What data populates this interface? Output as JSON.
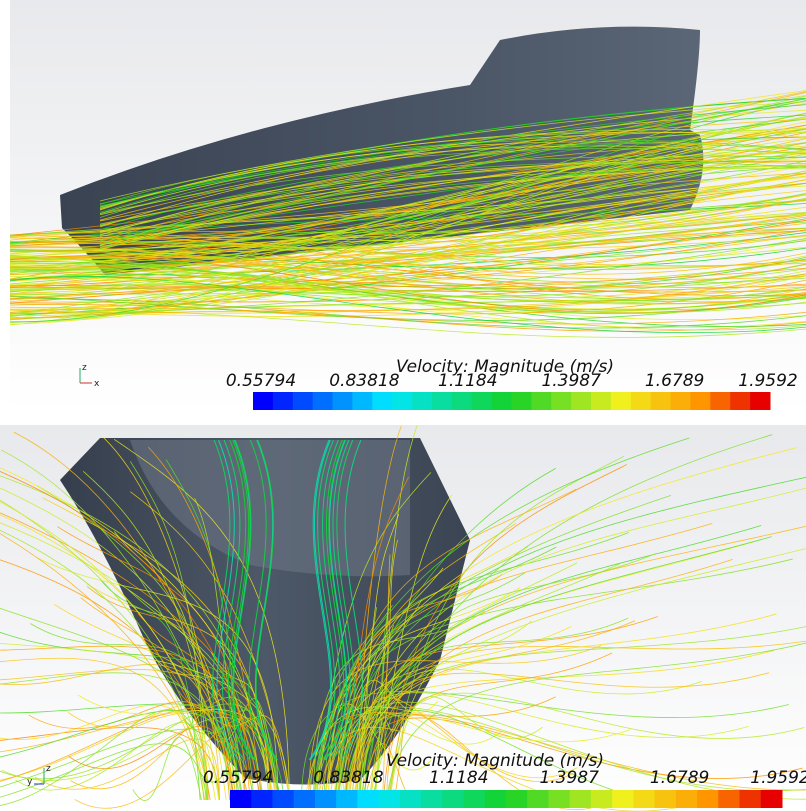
{
  "panels": [
    {
      "axes": [
        "z",
        "x"
      ],
      "colorbar": {
        "title": "Velocity: Magnitude (m/s)",
        "ticks": [
          "0.55794",
          "0.83818",
          "1.1184",
          "1.3987",
          "1.6789",
          "1.9592"
        ]
      }
    },
    {
      "axes": [
        "z",
        "y"
      ],
      "colorbar": {
        "title": "Velocity: Magnitude (m/s)",
        "ticks": [
          "0.55794",
          "0.83818",
          "1.1184",
          "1.3987",
          "1.6789",
          "1.9592"
        ]
      }
    }
  ]
}
